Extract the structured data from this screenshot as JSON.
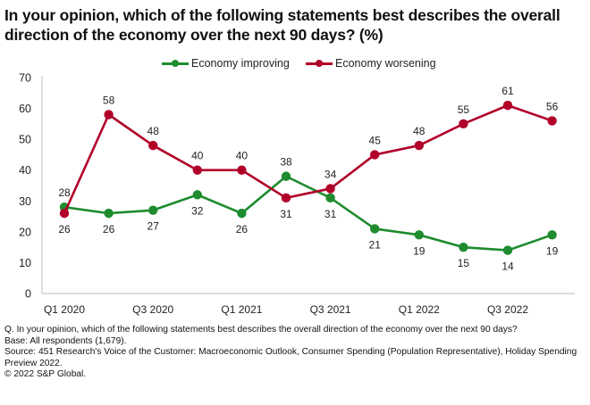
{
  "title": "In your opinion, which of the following statements best describes the overall direction of the economy over the next 90 days? (%)",
  "colors": {
    "improving": "#1e8c2e",
    "worsening": "#b1002a",
    "axis": "#c8c8c8",
    "text": "#1a1a1a"
  },
  "legend": {
    "items": [
      {
        "label": "Economy improving",
        "color": "#1e8c2e"
      },
      {
        "label": "Economy worsening",
        "color": "#b1002a"
      }
    ]
  },
  "chart_data": {
    "type": "line",
    "title": "In your opinion, which of the following statements best describes the overall direction of the economy over the next 90 days? (%)",
    "xlabel": "",
    "ylabel": "",
    "ylim": [
      0,
      70
    ],
    "yticks": [
      0,
      10,
      20,
      30,
      40,
      50,
      60,
      70
    ],
    "grid": false,
    "legend_position": "top-center",
    "x": [
      "Q1 2020",
      "Q2 2020",
      "Q3 2020",
      "Q4 2020",
      "Q1 2021",
      "Q2 2021",
      "Q3 2021",
      "Q4 2021",
      "Q1 2022",
      "Q2 2022",
      "Q3 2022",
      "Q4 2022"
    ],
    "xtick_labels": [
      "Q1 2020",
      "",
      "Q3 2020",
      "",
      "Q1 2021",
      "",
      "Q3 2021",
      "",
      "Q1 2022",
      "",
      "Q3 2022",
      ""
    ],
    "series": [
      {
        "name": "Economy improving",
        "color": "#1e8c2e",
        "values": [
          28,
          26,
          27,
          32,
          26,
          38,
          31,
          21,
          19,
          15,
          14,
          19
        ],
        "label_positions": [
          "above",
          "below",
          "below",
          "below",
          "below",
          "above",
          "below",
          "below",
          "below",
          "below",
          "below",
          "below"
        ]
      },
      {
        "name": "Economy worsening",
        "color": "#b1002a",
        "values": [
          26,
          58,
          48,
          40,
          40,
          31,
          34,
          45,
          48,
          55,
          61,
          56
        ],
        "label_positions": [
          "below",
          "above",
          "above",
          "above",
          "above",
          "below",
          "above",
          "above",
          "above",
          "above",
          "above",
          "above"
        ]
      }
    ]
  },
  "footnotes": {
    "question": "Q. In your opinion, which of the following statements best describes the overall direction of the economy over the next 90 days?",
    "base": "Base: All respondents (1,679).",
    "source": "Source: 451 Research's Voice of the Customer: Macroeconomic Outlook, Consumer Spending (Population Representative), Holiday Spending Preview 2022.",
    "copyright": "© 2022 S&P Global."
  }
}
